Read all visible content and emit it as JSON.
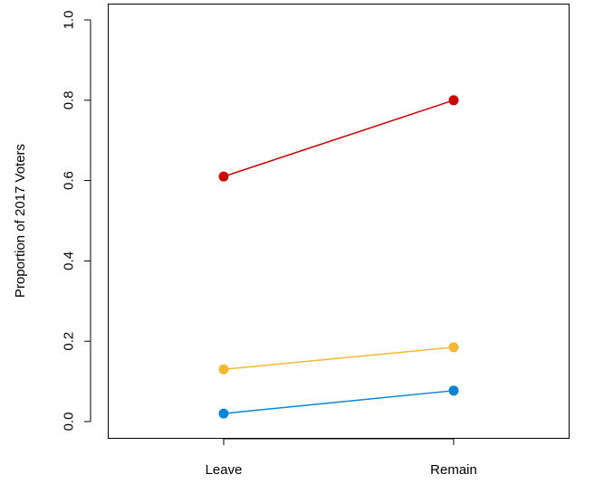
{
  "chart_data": {
    "type": "line",
    "title": "",
    "xlabel": "",
    "ylabel": "Proportion of 2017 Voters",
    "categories": [
      "Leave",
      "Remain"
    ],
    "ylim": [
      0,
      1.0
    ],
    "yticks": [
      "0.0",
      "0.2",
      "0.4",
      "0.6",
      "0.8",
      "1.0"
    ],
    "grid": false,
    "legend": "none",
    "series": [
      {
        "color": "#cc0000",
        "values": [
          0.61,
          0.8
        ]
      },
      {
        "color": "#f5b731",
        "values": [
          0.13,
          0.185
        ]
      },
      {
        "color": "#0a84d4",
        "values": [
          0.02,
          0.077
        ]
      }
    ]
  }
}
